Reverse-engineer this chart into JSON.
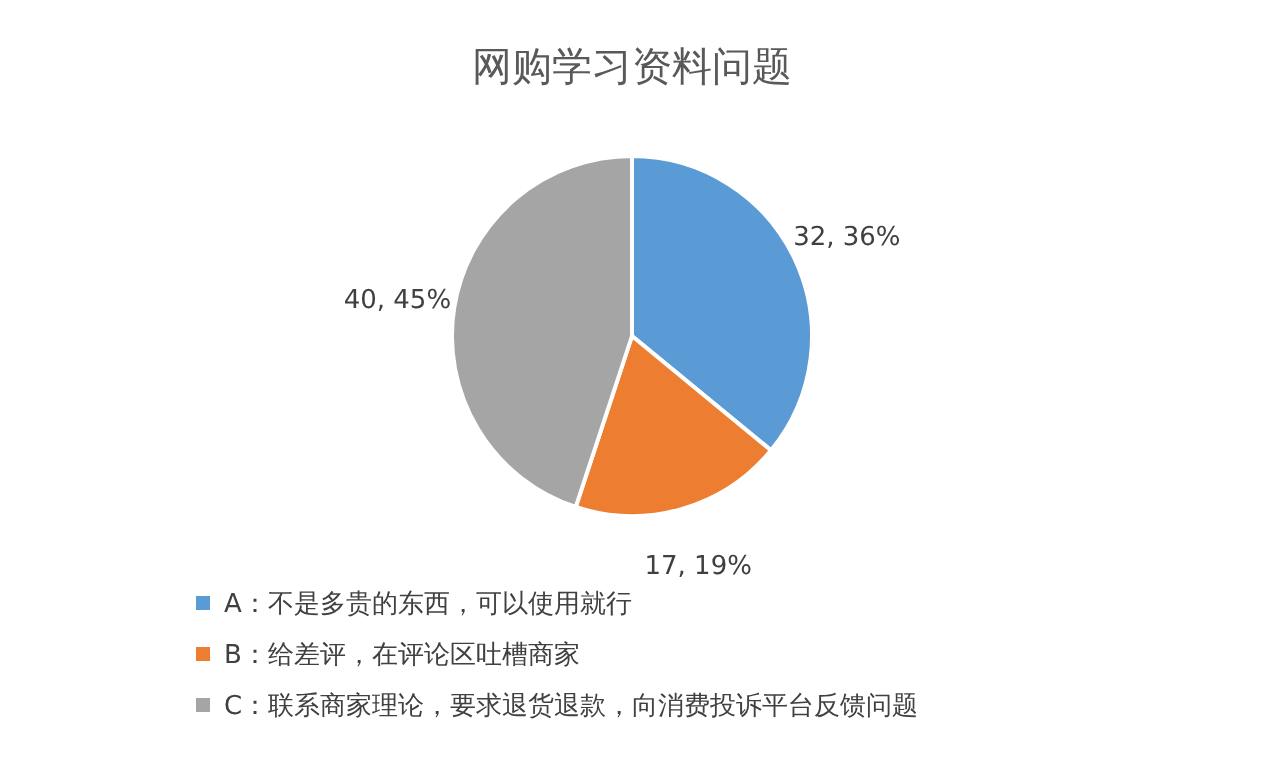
{
  "chart_data": {
    "type": "pie",
    "title": "网购学习资料问题",
    "categories": [
      "A：不是多贵的东西，可以使用就行",
      "B：给差评，在评论区吐槽商家",
      "C：联系商家理论，要求退货退款，向消费投诉平台反馈问题"
    ],
    "values": [
      32,
      17,
      40
    ],
    "colors": [
      "#5b9bd5",
      "#ed7d31",
      "#a5a5a5"
    ],
    "value_labels": [
      "32, 36%",
      "17, 19%",
      "40, 45%"
    ],
    "legend": "bottom"
  }
}
